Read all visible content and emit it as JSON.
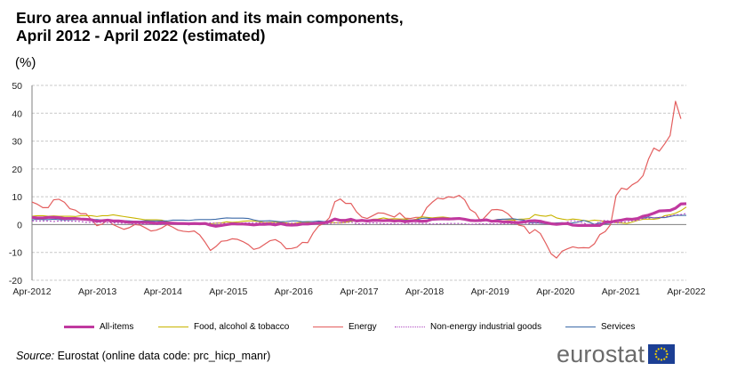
{
  "title_lines": [
    "Euro area annual inflation and its main components,",
    "April 2012 - April 2022 (estimated)"
  ],
  "unit": "(%)",
  "chart_data": {
    "type": "line",
    "x_tick_labels": [
      "Apr-2012",
      "Apr-2013",
      "Apr-2014",
      "Apr-2015",
      "Apr-2016",
      "Apr-2017",
      "Apr-2018",
      "Apr-2019",
      "Apr-2020",
      "Apr-2021",
      "Apr-2022"
    ],
    "ylim": [
      -20,
      50
    ],
    "y_ticks": [
      -20,
      -10,
      0,
      10,
      20,
      30,
      40,
      50
    ],
    "grid": true,
    "legend_position": "bottom",
    "series": [
      {
        "name": "All-items",
        "color": "#c0399f",
        "width": 3.2,
        "dash": "",
        "values": [
          2.6,
          2.4,
          2.4,
          2.6,
          2.6,
          2.5,
          2.2,
          2.2,
          2.2,
          2.0,
          1.9,
          1.7,
          1.2,
          1.4,
          1.6,
          1.3,
          1.3,
          1.1,
          0.8,
          0.9,
          0.8,
          0.8,
          0.7,
          0.5,
          0.7,
          0.5,
          0.5,
          0.4,
          0.4,
          0.3,
          0.4,
          0.3,
          0.4,
          -0.2,
          -0.6,
          -0.3,
          0.0,
          0.3,
          0.2,
          0.2,
          0.1,
          -0.1,
          0.1,
          0.1,
          0.2,
          -0.1,
          0.3,
          -0.1,
          -0.2,
          -0.1,
          0.2,
          0.2,
          0.4,
          0.6,
          0.6,
          1.1,
          2.0,
          1.5,
          1.5,
          1.9,
          1.3,
          1.5,
          1.3,
          1.5,
          1.5,
          1.4,
          1.5,
          1.3,
          1.4,
          1.1,
          1.3,
          1.4,
          1.2,
          1.3,
          1.9,
          2.0,
          2.1,
          2.0,
          2.1,
          2.2,
          1.9,
          1.5,
          1.4,
          1.5,
          1.7,
          1.2,
          1.3,
          1.0,
          1.0,
          0.8,
          0.7,
          1.0,
          1.3,
          1.4,
          1.2,
          0.7,
          0.3,
          0.1,
          0.3,
          0.4,
          -0.2,
          -0.3,
          -0.3,
          -0.3,
          -0.3,
          -0.3,
          0.9,
          0.9,
          1.3,
          1.6,
          2.0,
          1.9,
          2.2,
          3.0,
          3.4,
          4.1,
          4.9,
          5.0,
          5.1,
          5.9,
          7.4,
          7.5
        ]
      },
      {
        "name": "Food, alcohol & tobacco",
        "color": "#c8b400",
        "width": 1.1,
        "dash": "",
        "values": [
          3.0,
          3.2,
          3.2,
          3.0,
          3.1,
          3.0,
          3.0,
          3.0,
          2.9,
          3.2,
          3.2,
          3.2,
          2.9,
          3.2,
          3.2,
          3.5,
          3.2,
          2.9,
          2.6,
          2.3,
          2.0,
          1.7,
          1.7,
          1.7,
          1.6,
          1.0,
          0.7,
          0.4,
          0.3,
          0.2,
          0.3,
          0.3,
          0.5,
          0.3,
          0.5,
          0.6,
          1.0,
          0.8,
          0.9,
          1.2,
          1.3,
          1.3,
          1.1,
          0.7,
          0.8,
          0.8,
          0.8,
          0.6,
          0.3,
          0.6,
          0.9,
          0.8,
          0.6,
          0.4,
          0.7,
          0.8,
          0.7,
          0.6,
          0.8,
          1.2,
          1.4,
          1.8,
          1.5,
          1.9,
          2.0,
          2.4,
          2.0,
          2.1,
          2.0,
          2.0,
          1.6,
          1.9,
          2.8,
          2.6,
          2.4,
          2.6,
          2.7,
          2.5,
          2.2,
          2.1,
          1.9,
          1.8,
          1.5,
          1.8,
          1.5,
          1.4,
          1.8,
          1.9,
          1.8,
          1.6,
          1.9,
          2.0,
          2.2,
          3.6,
          3.2,
          3.0,
          3.4,
          2.4,
          2.0,
          1.7,
          2.0,
          1.8,
          1.5,
          1.3,
          1.6,
          1.4,
          1.1,
          0.9,
          0.7,
          0.6,
          0.4,
          0.9,
          1.5,
          1.9,
          2.0,
          1.9,
          2.2,
          3.2,
          3.5,
          4.1,
          5.0,
          6.3
        ]
      },
      {
        "name": "Energy",
        "color": "#e35d5d",
        "width": 1.2,
        "dash": "",
        "values": [
          8.1,
          7.3,
          6.1,
          6.1,
          8.9,
          9.1,
          8.0,
          5.7,
          5.2,
          3.9,
          3.9,
          1.7,
          -0.4,
          0.2,
          1.6,
          0.0,
          -0.9,
          -1.7,
          -1.1,
          0.0,
          -0.2,
          -1.2,
          -2.3,
          -2.0,
          -1.2,
          0.0,
          -0.9,
          -2.0,
          -2.4,
          -2.6,
          -2.3,
          -3.7,
          -6.3,
          -9.3,
          -7.9,
          -6.0,
          -5.8,
          -5.1,
          -5.3,
          -6.1,
          -7.2,
          -8.9,
          -8.4,
          -7.1,
          -5.8,
          -5.4,
          -6.5,
          -8.7,
          -8.6,
          -8.1,
          -6.4,
          -6.5,
          -3.0,
          -0.5,
          0.5,
          2.5,
          8.2,
          9.2,
          7.6,
          7.6,
          4.6,
          2.7,
          2.2,
          3.2,
          4.2,
          4.1,
          3.4,
          2.7,
          4.2,
          2.3,
          2.2,
          2.6,
          2.6,
          6.1,
          8.0,
          9.5,
          9.2,
          10.0,
          9.7,
          10.5,
          8.9,
          5.4,
          4.2,
          1.1,
          3.2,
          5.3,
          5.4,
          5.1,
          3.9,
          1.9,
          -0.2,
          -0.6,
          -3.2,
          -1.8,
          -3.2,
          -6.7,
          -10.5,
          -12.0,
          -9.6,
          -8.7,
          -8.0,
          -8.4,
          -8.3,
          -8.4,
          -6.9,
          -3.6,
          -2.5,
          0.0,
          10.4,
          13.1,
          12.6,
          14.3,
          15.4,
          17.6,
          23.5,
          27.5,
          26.4,
          29.0,
          32.0,
          44.3,
          38.0
        ]
      },
      {
        "name": "Non-energy industrial goods",
        "color": "#b04bc0",
        "width": 1.1,
        "dash": "2,2",
        "values": [
          1.3,
          1.3,
          1.3,
          1.3,
          1.1,
          1.3,
          1.3,
          1.2,
          1.2,
          1.1,
          0.8,
          0.8,
          0.8,
          0.8,
          0.7,
          0.6,
          0.5,
          0.5,
          0.5,
          0.2,
          0.3,
          0.1,
          0.1,
          0.0,
          0.0,
          0.2,
          0.2,
          0.3,
          0.1,
          -0.1,
          0.1,
          0.0,
          0.5,
          0.6,
          0.5,
          0.5,
          0.4,
          0.4,
          0.4,
          0.6,
          0.6,
          0.7,
          0.7,
          0.7,
          0.7,
          0.6,
          0.5,
          0.5,
          0.5,
          0.5,
          0.4,
          0.3,
          0.3,
          0.3,
          0.3,
          0.3,
          0.6,
          0.6,
          0.7,
          0.9,
          0.3,
          0.2,
          0.4,
          0.6,
          0.5,
          0.3,
          0.2,
          0.4,
          0.1,
          0.5,
          0.3,
          0.5,
          0.4,
          0.4,
          0.2,
          0.3,
          0.3,
          0.4,
          0.4,
          0.4,
          0.3,
          0.1,
          0.2,
          0.3,
          0.2,
          0.3,
          0.2,
          0.3,
          0.4,
          0.3,
          0.4,
          0.6,
          0.3,
          0.5,
          0.5,
          0.5,
          0.4,
          0.2,
          0.2,
          0.9,
          1.5,
          1.1,
          0.6,
          -0.1,
          -0.4,
          1.3,
          1.5,
          1.3,
          0.5,
          0.8,
          1.0,
          1.4,
          1.5,
          2.2,
          2.3,
          2.5,
          2.6,
          2.8,
          3.1,
          3.5,
          3.6,
          4.0
        ]
      },
      {
        "name": "Services",
        "color": "#3c6aa8",
        "width": 1.1,
        "dash": "",
        "values": [
          1.7,
          1.9,
          1.8,
          1.8,
          1.9,
          1.8,
          1.7,
          1.7,
          1.8,
          1.9,
          1.9,
          1.8,
          1.8,
          1.6,
          1.6,
          1.5,
          1.5,
          1.4,
          1.3,
          1.2,
          1.2,
          1.4,
          1.3,
          1.3,
          1.3,
          1.3,
          1.6,
          1.6,
          1.6,
          1.5,
          1.7,
          1.8,
          1.8,
          1.8,
          1.9,
          2.2,
          2.4,
          2.3,
          2.3,
          2.3,
          2.2,
          1.7,
          1.3,
          1.3,
          1.4,
          1.2,
          1.0,
          1.1,
          1.3,
          1.3,
          1.0,
          1.1,
          1.1,
          1.3,
          1.1,
          1.4,
          1.6,
          1.8,
          1.5,
          1.4,
          1.6,
          1.7,
          1.6,
          1.4,
          1.3,
          1.5,
          1.4,
          1.5,
          1.6,
          1.6,
          1.6,
          1.7,
          2.2,
          2.3,
          2.1,
          2.0,
          2.0,
          2.0,
          2.2,
          2.2,
          1.9,
          1.3,
          1.1,
          1.2,
          1.5,
          1.3,
          1.8,
          1.9,
          2.0,
          2.1,
          1.8,
          1.6,
          0.7,
          0.7,
          0.5,
          0.3,
          0.4,
          0.6,
          0.7,
          0.5,
          0.6,
          0.9,
          1.5,
          0.9,
          0.1,
          0.6,
          0.3,
          0.5,
          1.1,
          1.5,
          1.7,
          2.0,
          2.4,
          2.3,
          2.7,
          2.4,
          2.5,
          2.5,
          2.9,
          3.3,
          3.3,
          3.3
        ]
      }
    ]
  },
  "source": {
    "label": "Source:",
    "text": "Eurostat (online data code: prc_hicp_manr)"
  },
  "brand": {
    "name": "eurostat"
  },
  "colors": {
    "flag_blue": "#1c3f94",
    "flag_star": "#f5d000",
    "grid": "#c8c8c8",
    "axis": "#7f7f7f"
  }
}
